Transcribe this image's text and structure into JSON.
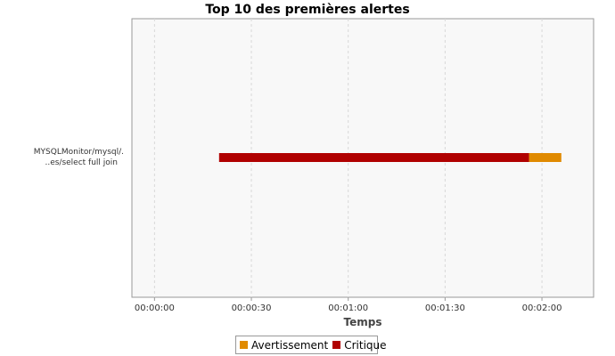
{
  "chart_data": {
    "type": "bar",
    "orientation": "horizontal",
    "stacked": true,
    "title": "Top 10 des premières alertes",
    "xlabel": "Temps",
    "ylabel": "",
    "categories": [
      "MYSQLMonitor/mysql/.\n..es/select full join"
    ],
    "x_ticks": [
      "00:00:00",
      "00:00:30",
      "00:01:00",
      "00:01:30",
      "00:02:00"
    ],
    "x_tick_values": [
      0,
      30,
      60,
      90,
      120
    ],
    "xlim": [
      -7,
      136
    ],
    "grid": true,
    "legend_position": "bottom",
    "series": [
      {
        "name": "Critique",
        "color": "#b00000",
        "start": [
          20
        ],
        "end": [
          116
        ]
      },
      {
        "name": "Avertissement",
        "color": "#e08a00",
        "start": [
          116
        ],
        "end": [
          126
        ]
      }
    ]
  },
  "legend": [
    {
      "label": "Avertissement",
      "color": "#e08a00"
    },
    {
      "label": "Critique",
      "color": "#b00000"
    }
  ]
}
